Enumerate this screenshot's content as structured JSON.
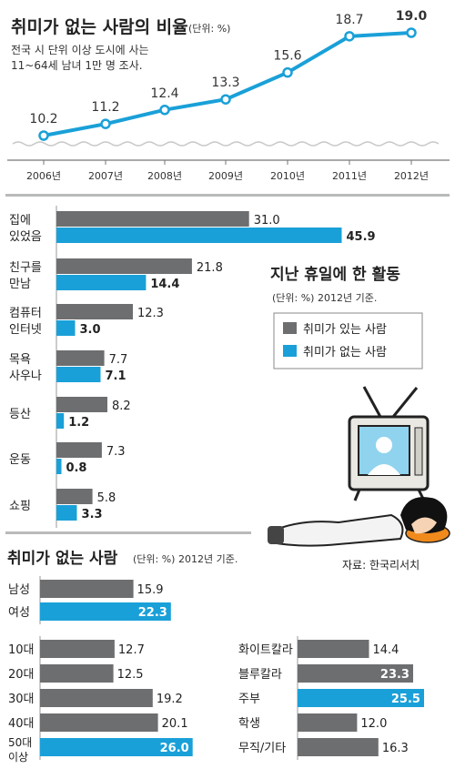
{
  "top": {
    "title": "취미가 없는 사람의 비율",
    "unit": "(단위: %)",
    "note_line1": "전국 시 단위 이상 도시에 사는",
    "note_line2": "11~64세 남녀 1만 명 조사."
  },
  "activities": {
    "title": "지난 휴일에 한 활동",
    "unit": "(단위: %)  2012년 기준.",
    "legend_has": "취미가 있는 사람",
    "legend_none": "취미가 없는 사람"
  },
  "source": "자료: 한국리서치",
  "bottom": {
    "title": "취미가 없는 사람",
    "unit": "(단위: %)  2012년 기준."
  },
  "colors": {
    "gray": "#6d6e70",
    "blue": "#1aa0d8",
    "line": "#1aa0d8"
  },
  "chart_data": [
    {
      "type": "line",
      "title": "취미가 없는 사람의 비율",
      "x": [
        "2006년",
        "2007년",
        "2008년",
        "2009년",
        "2010년",
        "2011년",
        "2012년"
      ],
      "values": [
        10.2,
        11.2,
        12.4,
        13.3,
        15.6,
        18.7,
        19.0
      ],
      "highlight_last": true
    },
    {
      "type": "bar",
      "title": "지난 휴일에 한 활동",
      "categories": [
        [
          "집에",
          "있었음"
        ],
        [
          "친구를",
          "만남"
        ],
        [
          "컴퓨터",
          "인터넷"
        ],
        [
          "목욕",
          "사우나"
        ],
        [
          "등산"
        ],
        [
          "운동"
        ],
        [
          "쇼핑"
        ]
      ],
      "series": [
        {
          "name": "취미가 있는 사람",
          "values": [
            31.0,
            21.8,
            12.3,
            7.7,
            8.2,
            7.3,
            5.8
          ]
        },
        {
          "name": "취미가 없는 사람",
          "values": [
            45.9,
            14.4,
            3.0,
            7.1,
            1.2,
            0.8,
            3.3
          ]
        }
      ]
    },
    {
      "type": "bar",
      "title": "취미가 없는 사람",
      "groups": [
        {
          "categories": [
            [
              "남성"
            ],
            [
              "여성"
            ]
          ],
          "values": [
            15.9,
            22.3
          ],
          "highlight": [
            1
          ]
        },
        {
          "categories": [
            [
              "10대"
            ],
            [
              "20대"
            ],
            [
              "30대"
            ],
            [
              "40대"
            ],
            [
              "50대",
              "이상"
            ]
          ],
          "values": [
            12.7,
            12.5,
            19.2,
            20.1,
            26.0
          ],
          "highlight": [
            4
          ]
        },
        {
          "categories": [
            [
              "화이트칼라"
            ],
            [
              "블루칼라"
            ],
            [
              "주부"
            ],
            [
              "학생"
            ],
            [
              "무직/기타"
            ]
          ],
          "values": [
            14.4,
            23.3,
            25.5,
            12.0,
            16.3
          ],
          "highlight": [
            2
          ]
        }
      ]
    }
  ]
}
